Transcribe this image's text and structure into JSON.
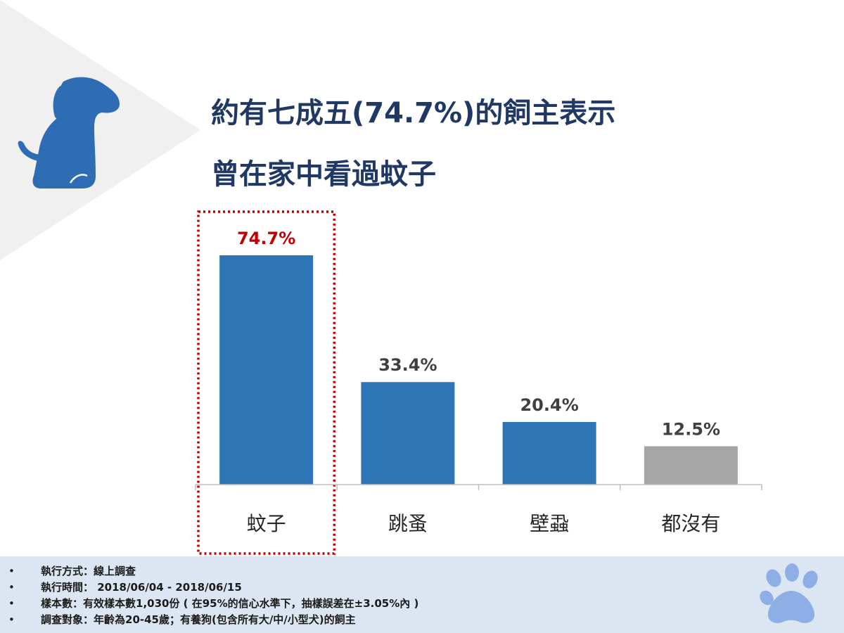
{
  "header": {
    "title_line1": "約有七成五(74.7%)的飼主表示",
    "title_line2": "曾在家中看過蚊子"
  },
  "chart_data": {
    "type": "bar",
    "categories": [
      "蚊子",
      "跳蚤",
      "壁蝨",
      "都沒有"
    ],
    "values": [
      74.7,
      33.4,
      20.4,
      12.5
    ],
    "value_labels": [
      "74.7%",
      "33.4%",
      "20.4%",
      "12.5%"
    ],
    "bar_colors": [
      "#2e75b6",
      "#2e75b6",
      "#2e75b6",
      "#a6a6a6"
    ],
    "highlight_index": 0,
    "highlight_label_color": "#c00000",
    "label_color": "#404040",
    "highlight_box_color": "#c00000",
    "unit": "%",
    "ylim": [
      0,
      80
    ],
    "grid": false,
    "title": "",
    "xlabel": "",
    "ylabel": ""
  },
  "footer": {
    "bullet_symbol": "•",
    "items": [
      "執行方式：線上調查",
      "執行時間： 2018/06/04 - 2018/06/15",
      "樣本數：有效樣本數1,030份 ( 在95%的信心水準下，抽樣誤差在±3.05%內 )",
      "調查對象：年齡為20-45歲；有養狗(包含所有大/中/小型犬)的飼主"
    ]
  },
  "icons": {
    "decor_top_left": "dog-silhouette-icon",
    "decor_bottom_right": "paw-print-icon"
  },
  "colors": {
    "title": "#1f3864",
    "bar_primary": "#2e75b6",
    "bar_secondary": "#a6a6a6",
    "highlight": "#c00000",
    "footer_bg": "#dce6f2",
    "triangle": "#f0f0f0",
    "paw": "#8eaee6"
  }
}
